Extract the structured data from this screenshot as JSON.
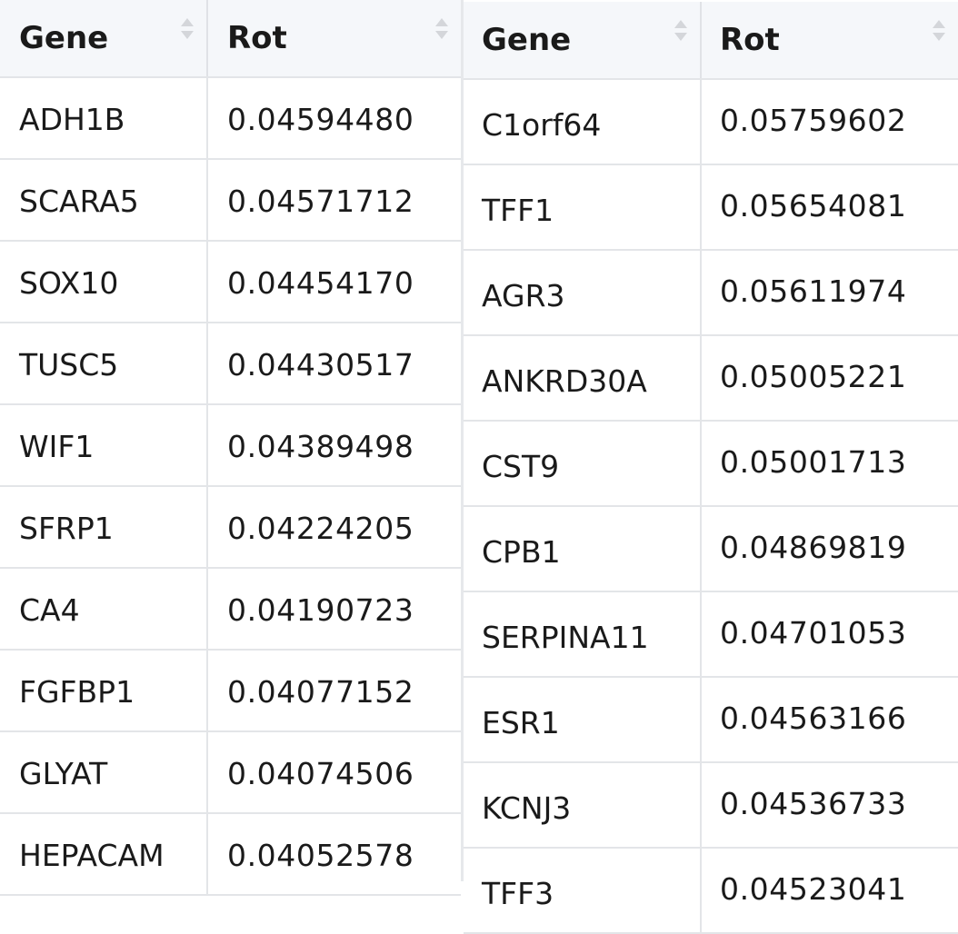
{
  "tables": [
    {
      "columns": [
        "Gene",
        "Rot"
      ],
      "rows": [
        [
          "ADH1B",
          "0.04594480"
        ],
        [
          "SCARA5",
          "0.04571712"
        ],
        [
          "SOX10",
          "0.04454170"
        ],
        [
          "TUSC5",
          "0.04430517"
        ],
        [
          "WIF1",
          "0.04389498"
        ],
        [
          "SFRP1",
          "0.04224205"
        ],
        [
          "CA4",
          "0.04190723"
        ],
        [
          "FGFBP1",
          "0.04077152"
        ],
        [
          "GLYAT",
          "0.04074506"
        ],
        [
          "HEPACAM",
          "0.04052578"
        ]
      ]
    },
    {
      "columns": [
        "Gene",
        "Rot"
      ],
      "rows": [
        [
          "C1orf64",
          "0.05759602"
        ],
        [
          "TFF1",
          "0.05654081"
        ],
        [
          "AGR3",
          "0.05611974"
        ],
        [
          "ANKRD30A",
          "0.05005221"
        ],
        [
          "CST9",
          "0.05001713"
        ],
        [
          "CPB1",
          "0.04869819"
        ],
        [
          "SERPINA11",
          "0.04701053"
        ],
        [
          "ESR1",
          "0.04563166"
        ],
        [
          "KCNJ3",
          "0.04536733"
        ],
        [
          "TFF3",
          "0.04523041"
        ]
      ]
    }
  ],
  "icons": {
    "sort": "sort-arrows-icon"
  },
  "colors": {
    "header_bg": "#f5f7fa",
    "grid_line": "#e3e5e8",
    "sort_arrow": "#d4d6da",
    "text": "#1a1a1a"
  }
}
